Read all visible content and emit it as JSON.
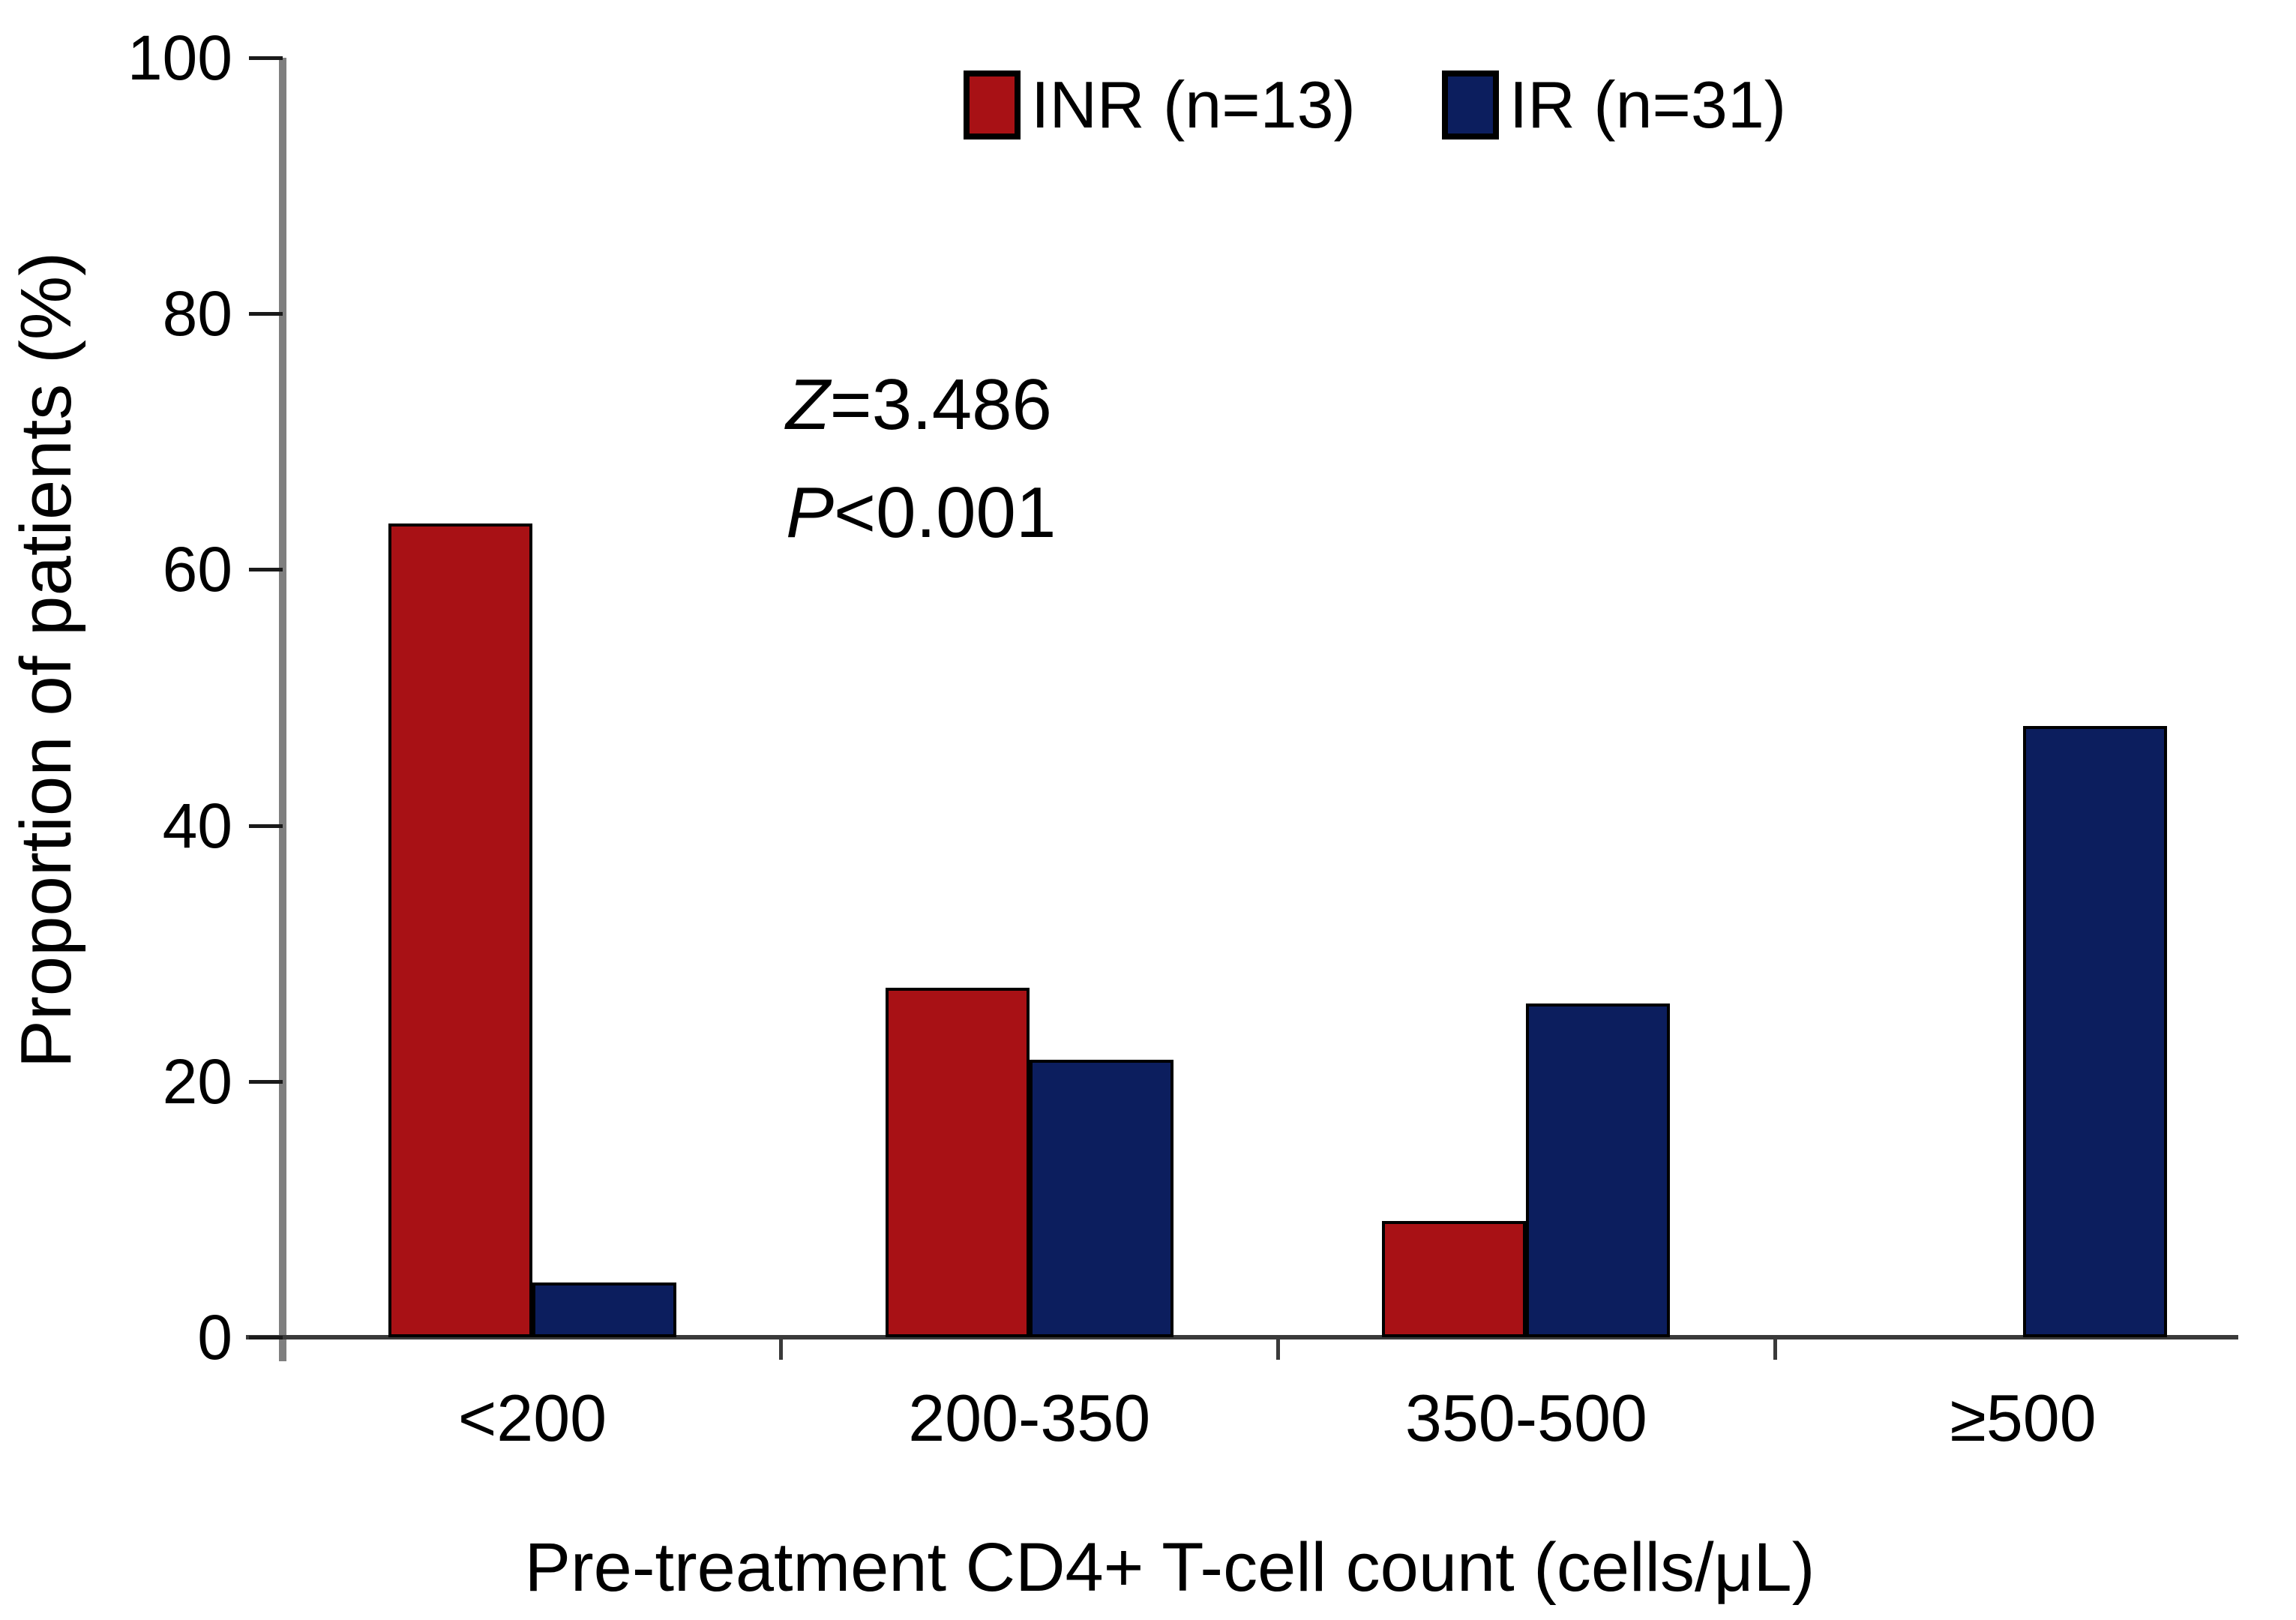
{
  "chart_data": {
    "type": "bar",
    "title": "",
    "categories": [
      "<200",
      "200-350",
      "350-500",
      "≥500"
    ],
    "series": [
      {
        "name": "INR (n=13)",
        "color": "#a81115",
        "values": [
          63.6,
          27.3,
          9.1,
          0
        ]
      },
      {
        "name": "IR (n=31)",
        "color": "#0c1e5e",
        "values": [
          4.3,
          21.7,
          26.1,
          47.8
        ]
      }
    ],
    "xlabel": "Pre-treatment CD4+ T-cell count (cells/μL)",
    "ylabel": "Proportion of patients (%)",
    "ylim": [
      0,
      100
    ],
    "yticks": [
      0,
      20,
      40,
      60,
      80,
      100
    ],
    "annotation": [
      "Z=3.486",
      "P<0.001"
    ],
    "annotation_italic_first_char": true,
    "legend_position": "top",
    "grid": false,
    "bar_outline_color": "#000000",
    "axis_line_color": "#7f7f7f",
    "baseline_color": "#3a3a3a",
    "text_color": "#000000"
  }
}
